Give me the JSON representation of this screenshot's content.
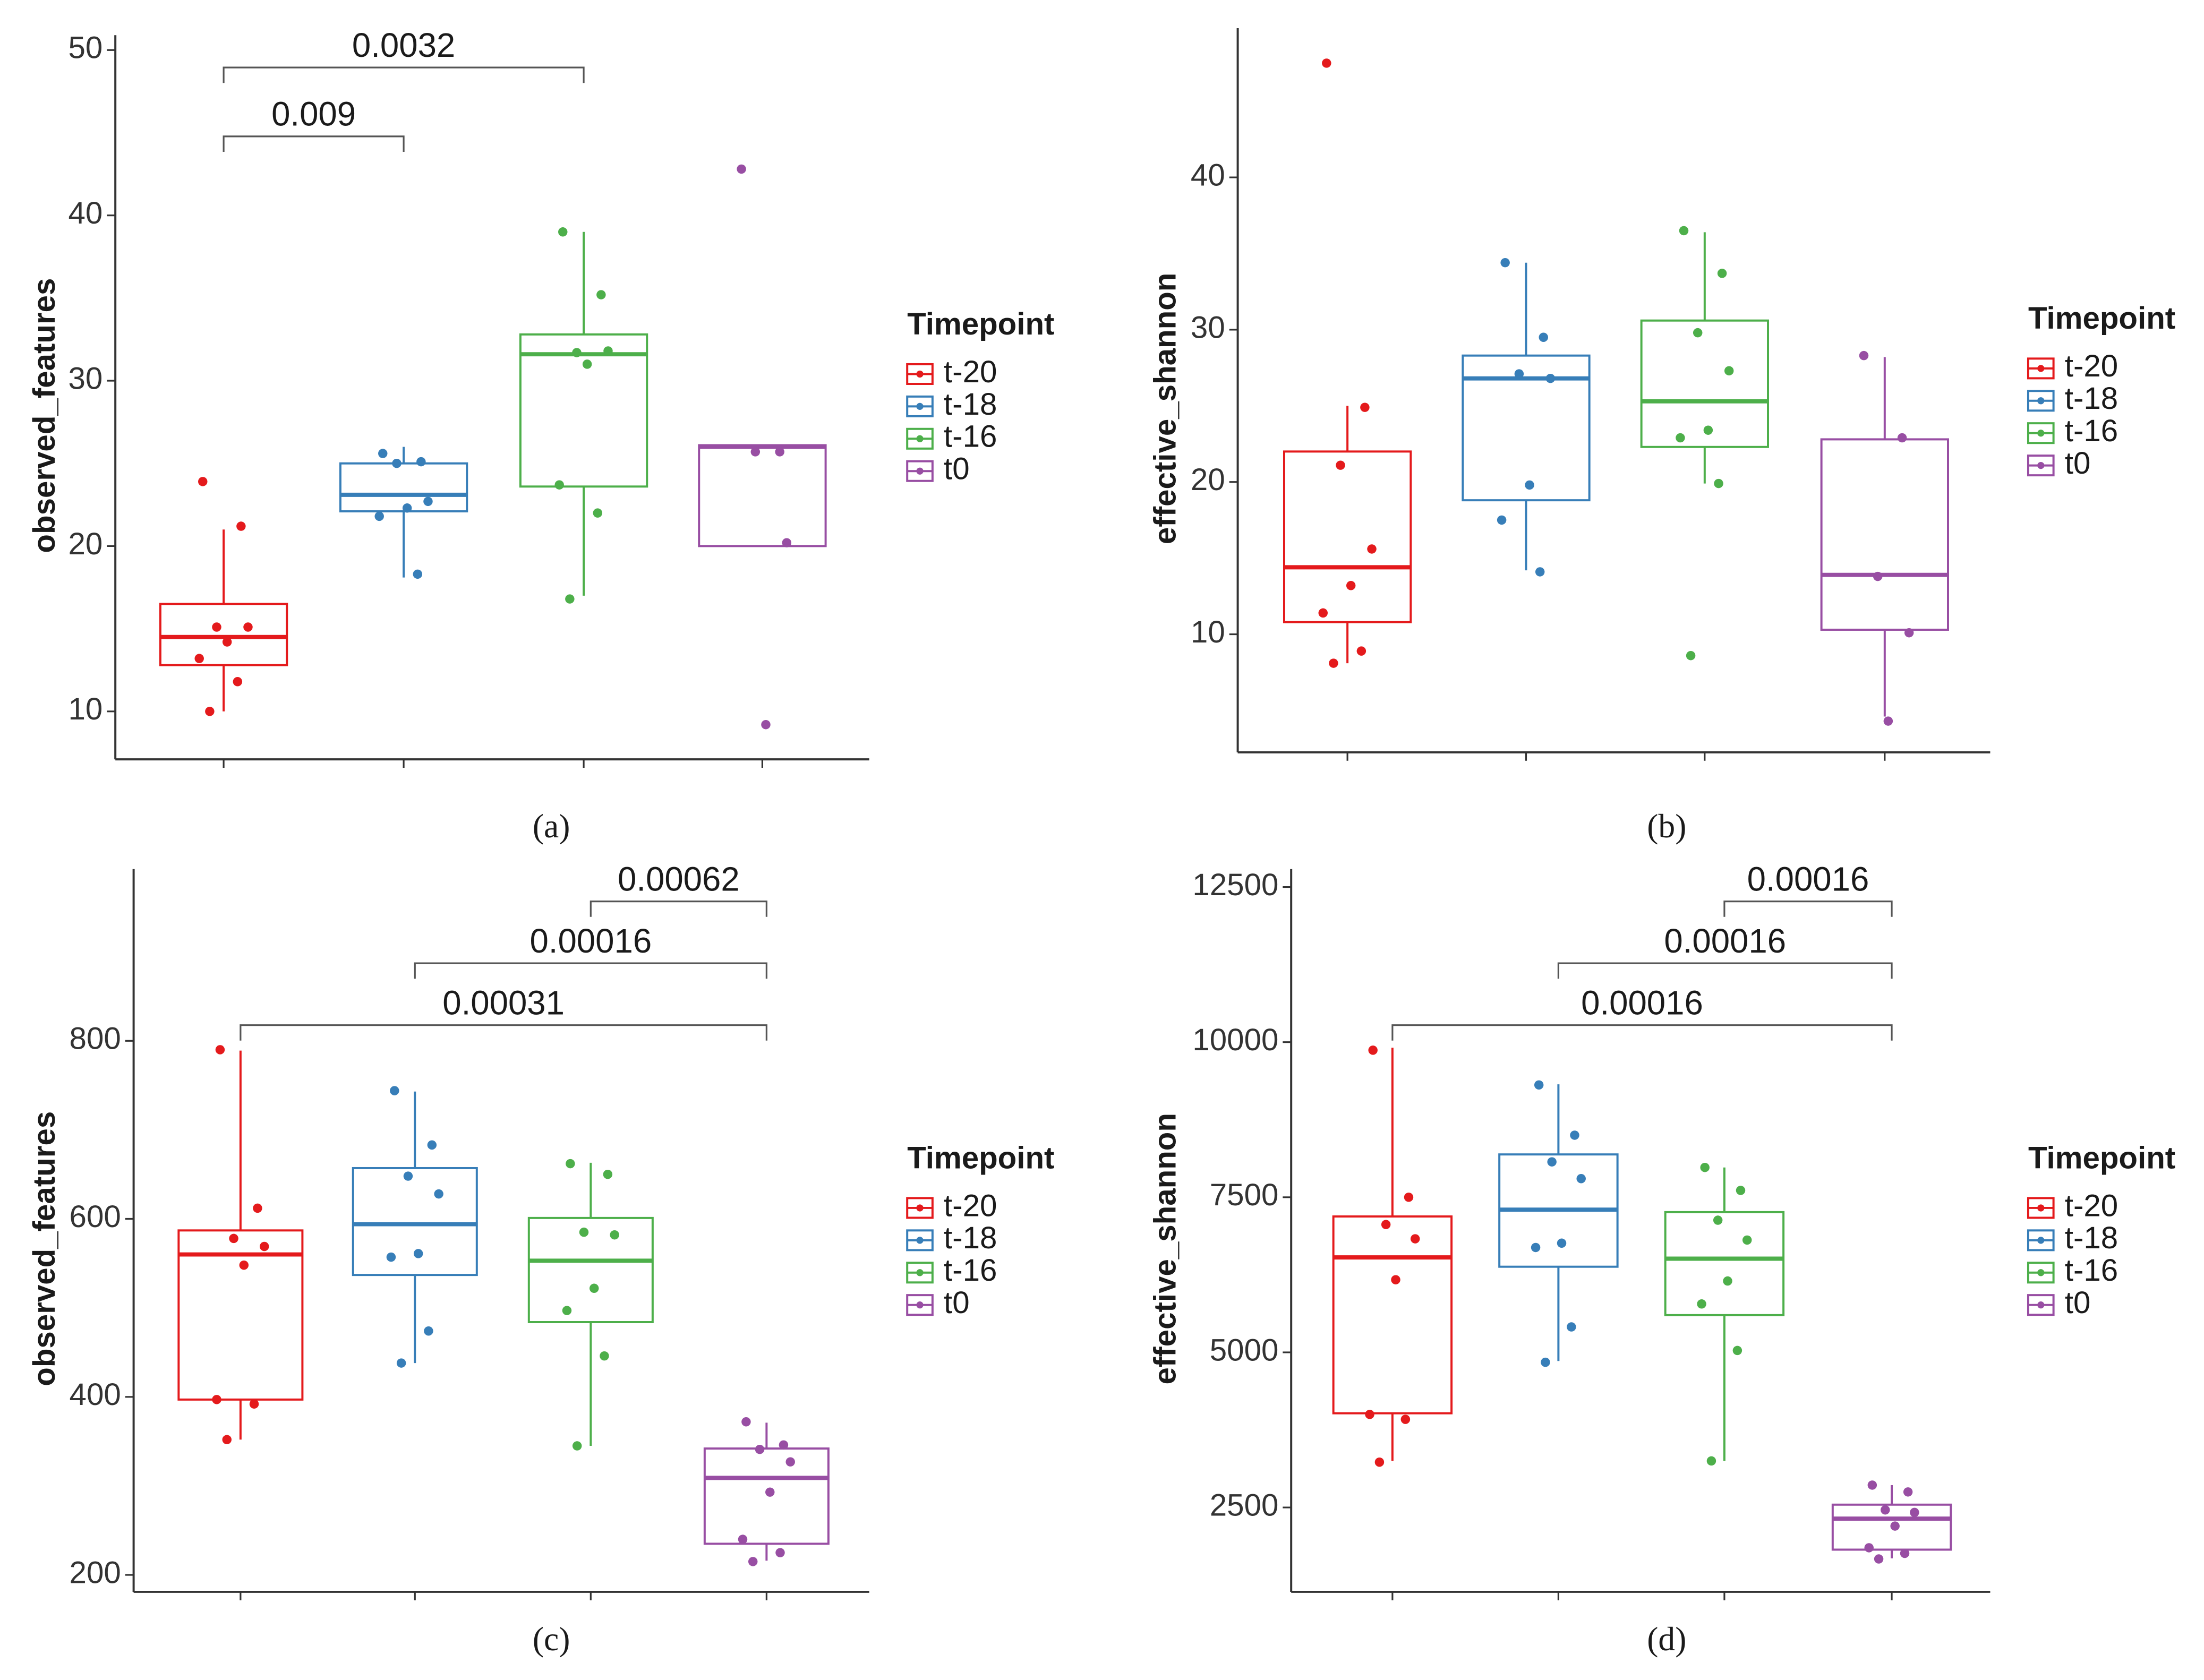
{
  "chart_data": [
    {
      "type": "box",
      "panel_label": "(a)",
      "ylabel": "observed_features",
      "legend_title": "Timepoint",
      "ylim": [
        7.1,
        50.9
      ],
      "yticks": [
        10,
        20,
        30,
        40,
        50
      ],
      "annotations": [
        {
          "label": "0.0032",
          "groups": [
            "t-20",
            "t-16"
          ]
        },
        {
          "label": "0.009",
          "groups": [
            "t-20",
            "t-18"
          ]
        }
      ],
      "series": [
        {
          "name": "t-20",
          "color": "#E41A1C",
          "whisker_low": 10.0,
          "q1": 12.8,
          "median": 14.5,
          "q3": 16.5,
          "whisker_high": 21.0,
          "points": [
            23.9,
            21.2,
            15.1,
            15.1,
            14.2,
            13.2,
            11.8,
            10.0
          ]
        },
        {
          "name": "t-18",
          "color": "#377EB8",
          "whisker_low": 18.1,
          "q1": 22.1,
          "median": 23.1,
          "q3": 25.0,
          "whisker_high": 26.0,
          "points": [
            25.6,
            25.1,
            25.0,
            22.7,
            22.3,
            21.8,
            18.3
          ]
        },
        {
          "name": "t-16",
          "color": "#4DAF4A",
          "whisker_low": 17.0,
          "q1": 23.6,
          "median": 31.6,
          "q3": 32.8,
          "whisker_high": 39.0,
          "points": [
            39.0,
            35.2,
            31.7,
            31.8,
            31.0,
            23.7,
            22.0,
            16.8
          ]
        },
        {
          "name": "t0",
          "color": "#984EA3",
          "whisker_low": 20.0,
          "q1": 20.0,
          "median": 26.0,
          "q3": 26.1,
          "whisker_high": 26.1,
          "points": [
            42.8,
            25.7,
            25.7,
            20.2,
            9.2
          ]
        }
      ]
    },
    {
      "type": "box",
      "panel_label": "(b)",
      "ylabel": "effective_shannon",
      "legend_title": "Timepoint",
      "ylim": [
        2.25,
        49.8
      ],
      "yticks": [
        10,
        20,
        30,
        40
      ],
      "annotations": [],
      "series": [
        {
          "name": "t-20",
          "color": "#E41A1C",
          "whisker_low": 8.1,
          "q1": 10.8,
          "median": 14.4,
          "q3": 22.0,
          "whisker_high": 25.0,
          "points": [
            47.5,
            24.9,
            21.1,
            15.6,
            13.2,
            11.4,
            8.9,
            8.1
          ]
        },
        {
          "name": "t-18",
          "color": "#377EB8",
          "whisker_low": 14.2,
          "q1": 18.8,
          "median": 26.8,
          "q3": 28.3,
          "whisker_high": 34.4,
          "points": [
            34.4,
            29.5,
            27.1,
            26.8,
            19.8,
            17.5,
            14.1
          ]
        },
        {
          "name": "t-16",
          "color": "#4DAF4A",
          "whisker_low": 19.9,
          "q1": 22.3,
          "median": 25.3,
          "q3": 30.6,
          "whisker_high": 36.4,
          "points": [
            36.5,
            33.7,
            29.8,
            27.3,
            23.4,
            22.9,
            19.9,
            8.6
          ]
        },
        {
          "name": "t0",
          "color": "#984EA3",
          "whisker_low": 4.6,
          "q1": 10.3,
          "median": 13.9,
          "q3": 22.8,
          "whisker_high": 28.2,
          "points": [
            28.3,
            22.9,
            13.8,
            10.1,
            4.3
          ]
        }
      ]
    },
    {
      "type": "box",
      "panel_label": "(c)",
      "ylabel": "observed_features",
      "legend_title": "Timepoint",
      "ylim": [
        181,
        993
      ],
      "yticks": [
        200,
        400,
        600,
        800
      ],
      "annotations": [
        {
          "label": "0.00062",
          "groups": [
            "t-16",
            "t0"
          ]
        },
        {
          "label": "0.00016",
          "groups": [
            "t-18",
            "t0"
          ]
        },
        {
          "label": "0.00031",
          "groups": [
            "t-20",
            "t0"
          ]
        }
      ],
      "series": [
        {
          "name": "t-20",
          "color": "#E41A1C",
          "whisker_low": 352,
          "q1": 397,
          "median": 560,
          "q3": 587,
          "whisker_high": 789,
          "points": [
            790,
            612,
            578,
            569,
            548,
            397,
            392,
            352
          ]
        },
        {
          "name": "t-18",
          "color": "#377EB8",
          "whisker_low": 438,
          "q1": 537,
          "median": 594,
          "q3": 657,
          "whisker_high": 743,
          "points": [
            744,
            683,
            648,
            628,
            561,
            557,
            474,
            438
          ]
        },
        {
          "name": "t-16",
          "color": "#4DAF4A",
          "whisker_low": 345,
          "q1": 484,
          "median": 553,
          "q3": 601,
          "whisker_high": 663,
          "points": [
            662,
            650,
            585,
            582,
            522,
            497,
            446,
            345
          ]
        },
        {
          "name": "t0",
          "color": "#984EA3",
          "whisker_low": 216,
          "q1": 235,
          "median": 309,
          "q3": 342,
          "whisker_high": 371,
          "points": [
            372,
            346,
            341,
            327,
            293,
            240,
            225,
            215
          ]
        }
      ]
    },
    {
      "type": "box",
      "panel_label": "(d)",
      "ylabel": "effective_shannon",
      "legend_title": "Timepoint",
      "ylim": [
        1140,
        12790
      ],
      "yticks": [
        2500,
        5000,
        7500,
        10000,
        12500
      ],
      "annotations": [
        {
          "label": "0.00016",
          "groups": [
            "t-16",
            "t0"
          ]
        },
        {
          "label": "0.00016",
          "groups": [
            "t-18",
            "t0"
          ]
        },
        {
          "label": "0.00016",
          "groups": [
            "t-20",
            "t0"
          ]
        }
      ],
      "series": [
        {
          "name": "t-20",
          "color": "#E41A1C",
          "whisker_low": 3250,
          "q1": 4018,
          "median": 6530,
          "q3": 7190,
          "whisker_high": 9910,
          "points": [
            9870,
            7500,
            7060,
            6830,
            6170,
            4000,
            3920,
            3230
          ]
        },
        {
          "name": "t-18",
          "color": "#377EB8",
          "whisker_low": 4860,
          "q1": 6380,
          "median": 7300,
          "q3": 8190,
          "whisker_high": 9320,
          "points": [
            9310,
            8500,
            8070,
            7800,
            6760,
            6690,
            5410,
            4840
          ]
        },
        {
          "name": "t-16",
          "color": "#4DAF4A",
          "whisker_low": 3250,
          "q1": 5600,
          "median": 6510,
          "q3": 7260,
          "whisker_high": 7980,
          "points": [
            7980,
            7610,
            7130,
            6810,
            6150,
            5780,
            5030,
            3250
          ]
        },
        {
          "name": "t0",
          "color": "#984EA3",
          "whisker_low": 1680,
          "q1": 1820,
          "median": 2320,
          "q3": 2545,
          "whisker_high": 2860,
          "points": [
            2860,
            2750,
            2460,
            2420,
            2200,
            1850,
            1760,
            1670
          ]
        }
      ]
    }
  ]
}
